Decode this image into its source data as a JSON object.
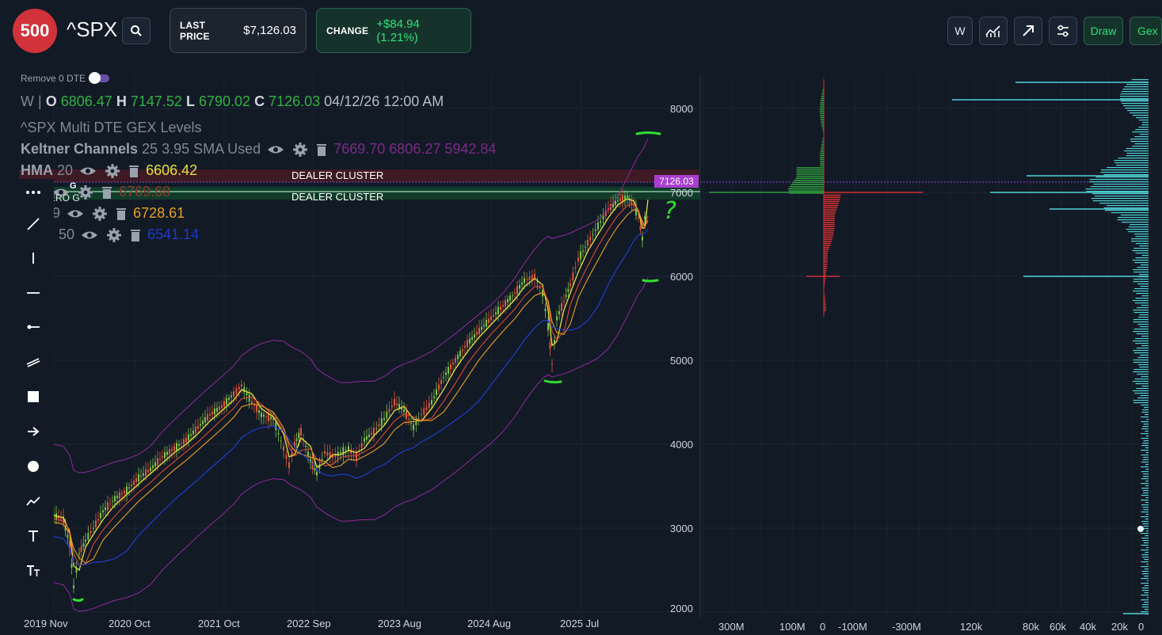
{
  "header": {
    "logo": "500",
    "ticker": "^SPX",
    "last_price_label": "LAST PRICE",
    "last_price_value": "$7,126.03",
    "change_label": "CHANGE",
    "change_value": "+$84.94 (1.21%)",
    "buttons": [
      "W",
      "Draw",
      "Gex"
    ],
    "icons": [
      "search-icon",
      "indicators-icon",
      "trend-arrow-icon",
      "settings-sliders-icon"
    ]
  },
  "toggle": {
    "label": "Remove 0 DTE",
    "on": true
  },
  "legend": {
    "ohlc": {
      "interval": "W",
      "sep": "|",
      "o_label": "O",
      "o": "6806.47",
      "h_label": "H",
      "h": "7147.52",
      "l_label": "L",
      "l": "6790.02",
      "c_label": "C",
      "c": "7126.03",
      "datetime": "04/12/26 12:00 AM"
    },
    "gex_title": "^SPX Multi DTE GEX Levels",
    "keltner": {
      "name": "Keltner Channels",
      "params": "25 3.95 SMA Used",
      "values": "7669.70 6806.27 5942.84"
    },
    "hma": {
      "name": "HMA",
      "param": "20",
      "value": "6606.42"
    },
    "ema1": {
      "param_partial": "1",
      "value": "6769.68"
    },
    "ema2": {
      "param_partial": "9",
      "value": "6728.61"
    },
    "sma": {
      "param": "50",
      "value": "6541.14"
    },
    "zero_g_partial": "ERO G",
    "g_marker": "G"
  },
  "chart": {
    "cluster_labels": [
      "DEALER CLUSTER",
      "DEALER CLUSTER"
    ],
    "current_price_tag": "7126.03",
    "y_ticks": [
      "8000",
      "7000",
      "6000",
      "5000",
      "4000",
      "3000",
      "2000"
    ],
    "x_ticks": [
      "2019 Nov",
      "2020 Oct",
      "2021 Oct",
      "2022 Sep",
      "2023 Aug",
      "2024 Aug",
      "2025 Jul"
    ],
    "gex_x_ticks": [
      "300M",
      "100M",
      "0",
      "-100M",
      "-300M"
    ],
    "vol_x_ticks": [
      "120k",
      "80k",
      "60k",
      "40k",
      "20k",
      "0"
    ],
    "annotation": "?"
  },
  "colors": {
    "background": "#121a26",
    "accent_green": "#32e07a",
    "badge_red": "#d2323a",
    "keltner": "#8f2a9a",
    "hma": "#e6e23a",
    "ema_fast": "#e04a2e",
    "ema_mid": "#e8a020",
    "sma": "#2040d8",
    "cyan": "#4fd3d6",
    "price_tag": "#a93fd1"
  },
  "toolbar": [
    "more-dots-icon",
    "trendline-icon",
    "vertical-line-icon",
    "horizontal-line-icon",
    "ray-icon",
    "parallel-channel-icon",
    "rectangle-icon",
    "arrow-icon",
    "circle-icon",
    "polyline-icon",
    "text-icon",
    "text-size-icon"
  ]
}
